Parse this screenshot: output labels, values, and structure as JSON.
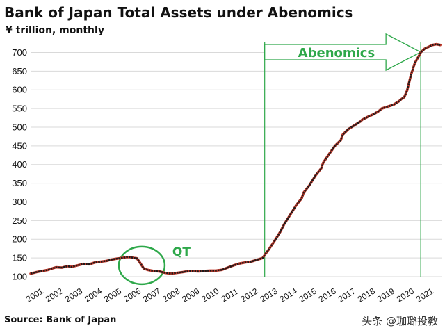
{
  "header": {
    "title": "Bank of Japan Total Assets under Abenomics",
    "subtitle": "¥ trillion, monthly"
  },
  "footer": {
    "source": "Source: Bank of Japan",
    "watermark": "头条 @珈璐投教"
  },
  "colors": {
    "line": "#1a1a1a",
    "line_accent": "#c0392b",
    "annotation": "#2ea84a",
    "grid": "#d9d9d9"
  },
  "chart_data": {
    "type": "line",
    "title": "Bank of Japan Total Assets under Abenomics",
    "subtitle": "¥ trillion, monthly",
    "xlabel": "",
    "ylabel": "",
    "ylim": [
      100,
      725
    ],
    "yticks": [
      "100",
      "150",
      "200",
      "250",
      "300",
      "350",
      "400",
      "450",
      "500",
      "550",
      "600",
      "650",
      "700"
    ],
    "xticks": [
      "2001",
      "2002",
      "2003",
      "2004",
      "2005",
      "2006",
      "2007",
      "2008",
      "2009",
      "2010",
      "2011",
      "2012",
      "2013",
      "2014",
      "2015",
      "2016",
      "2017",
      "2018",
      "2019",
      "2020",
      "2021"
    ],
    "xlim": [
      2001,
      2022.1
    ],
    "grid": "horizontal",
    "series": [
      {
        "x": [
          2001.0,
          2001.3,
          2001.6,
          2001.9,
          2002.0,
          2002.3,
          2002.6,
          2002.9,
          2003.1,
          2003.4,
          2003.7,
          2004.0,
          2004.3,
          2004.6,
          2004.9,
          2005.1,
          2005.4,
          2005.7,
          2005.9,
          2006.1,
          2006.3,
          2006.45,
          2006.6,
          2006.8,
          2007.0,
          2007.3,
          2007.6,
          2007.9,
          2008.2,
          2008.5,
          2008.8,
          2009.0,
          2009.3,
          2009.6,
          2009.9,
          2010.2,
          2010.5,
          2010.8,
          2011.1,
          2011.4,
          2011.7,
          2012.0,
          2012.3,
          2012.6,
          2012.9,
          2013.0,
          2013.2,
          2013.5,
          2013.8,
          2014.0,
          2014.3,
          2014.6,
          2014.9,
          2015.0,
          2015.3,
          2015.6,
          2015.9,
          2016.0,
          2016.3,
          2016.6,
          2016.9,
          2017.0,
          2017.3,
          2017.6,
          2017.9,
          2018.0,
          2018.3,
          2018.6,
          2018.9,
          2019.0,
          2019.3,
          2019.6,
          2019.9,
          2020.0,
          2020.15,
          2020.3,
          2020.5,
          2020.7,
          2020.9,
          2021.0,
          2021.2,
          2021.4,
          2021.6,
          2021.8,
          2022.0
        ],
        "values": [
          108,
          112,
          115,
          118,
          120,
          125,
          124,
          128,
          126,
          130,
          134,
          133,
          138,
          140,
          142,
          145,
          148,
          150,
          152,
          152,
          150,
          149,
          138,
          122,
          118,
          115,
          114,
          110,
          108,
          110,
          112,
          114,
          115,
          114,
          115,
          116,
          116,
          118,
          124,
          130,
          135,
          138,
          140,
          145,
          150,
          158,
          172,
          195,
          220,
          240,
          265,
          290,
          310,
          325,
          345,
          370,
          390,
          405,
          428,
          450,
          465,
          480,
          495,
          505,
          515,
          520,
          528,
          535,
          545,
          550,
          555,
          560,
          570,
          575,
          580,
          598,
          640,
          672,
          690,
          700,
          710,
          715,
          720,
          722,
          720
        ]
      }
    ],
    "annotations": [
      {
        "label": "Abenomics",
        "from": 2013.0,
        "to": 2021.0
      },
      {
        "label": "QT",
        "at": 2006.7
      }
    ]
  }
}
